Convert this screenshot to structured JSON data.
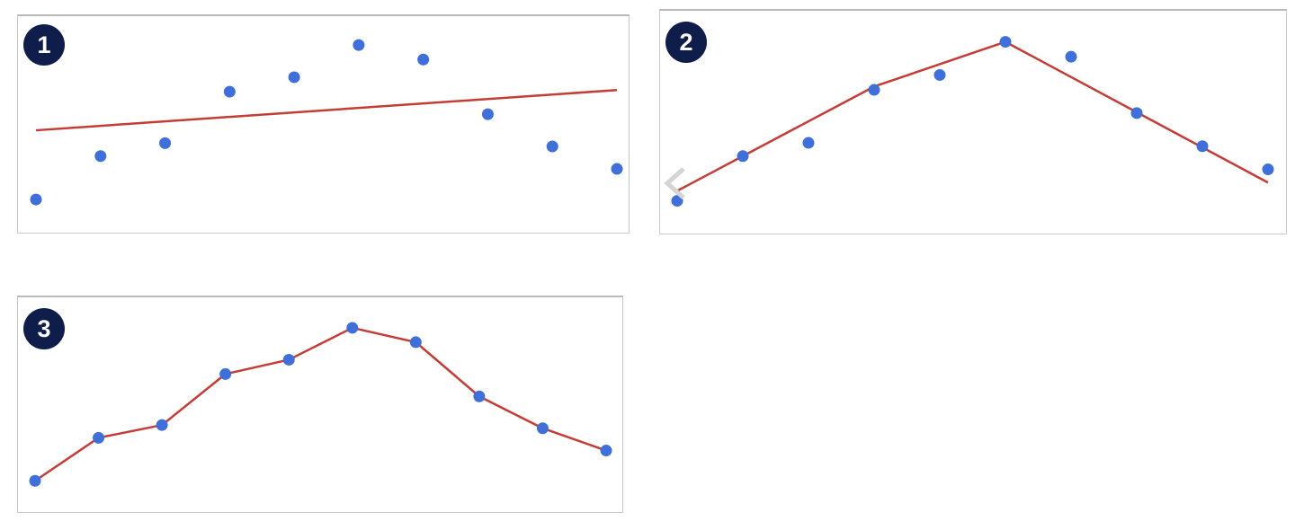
{
  "colors": {
    "point": "#3f6fd8",
    "fit_line": "#c43c36",
    "badge_bg": "#0f1d4a",
    "badge_text": "#ffffff"
  },
  "nav": {
    "icon": "chevron-left-icon"
  },
  "chart_data": [
    {
      "type": "scatter",
      "badge": "1",
      "fit": "linear",
      "x": [
        1,
        2,
        3,
        4,
        5,
        6,
        7,
        8,
        9,
        10
      ],
      "points": [
        1.0,
        3.7,
        4.5,
        7.7,
        8.6,
        10.6,
        9.7,
        6.3,
        4.3,
        2.9
      ],
      "fit_line": [
        [
          1,
          5.3
        ],
        [
          10,
          7.8
        ]
      ],
      "xlim": [
        1,
        10
      ],
      "ylim": [
        0,
        11.5
      ],
      "grid": false
    },
    {
      "type": "scatter",
      "badge": "2",
      "fit": "piecewise-linear",
      "x": [
        1,
        2,
        3,
        4,
        5,
        6,
        7,
        8,
        9,
        10
      ],
      "points": [
        1.0,
        3.7,
        4.5,
        7.7,
        8.6,
        10.6,
        9.7,
        6.3,
        4.3,
        2.9
      ],
      "fit_line": [
        [
          1,
          1.6
        ],
        [
          4,
          7.9
        ],
        [
          6,
          10.6
        ],
        [
          10,
          2.1
        ]
      ],
      "xlim": [
        1,
        10
      ],
      "ylim": [
        0,
        11.5
      ],
      "grid": false
    },
    {
      "type": "line",
      "badge": "3",
      "fit": "interpolating",
      "x": [
        1,
        2,
        3,
        4,
        5,
        6,
        7,
        8,
        9,
        10
      ],
      "points": [
        1.0,
        3.7,
        4.5,
        7.7,
        8.6,
        10.6,
        9.7,
        6.3,
        4.3,
        2.9
      ],
      "fit_line": [
        [
          1,
          1.0
        ],
        [
          2,
          3.7
        ],
        [
          3,
          4.5
        ],
        [
          4,
          7.7
        ],
        [
          5,
          8.6
        ],
        [
          6,
          10.6
        ],
        [
          7,
          9.7
        ],
        [
          8,
          6.3
        ],
        [
          9,
          4.3
        ],
        [
          10,
          2.9
        ]
      ],
      "xlim": [
        1,
        10
      ],
      "ylim": [
        0,
        11.5
      ],
      "grid": false
    }
  ]
}
